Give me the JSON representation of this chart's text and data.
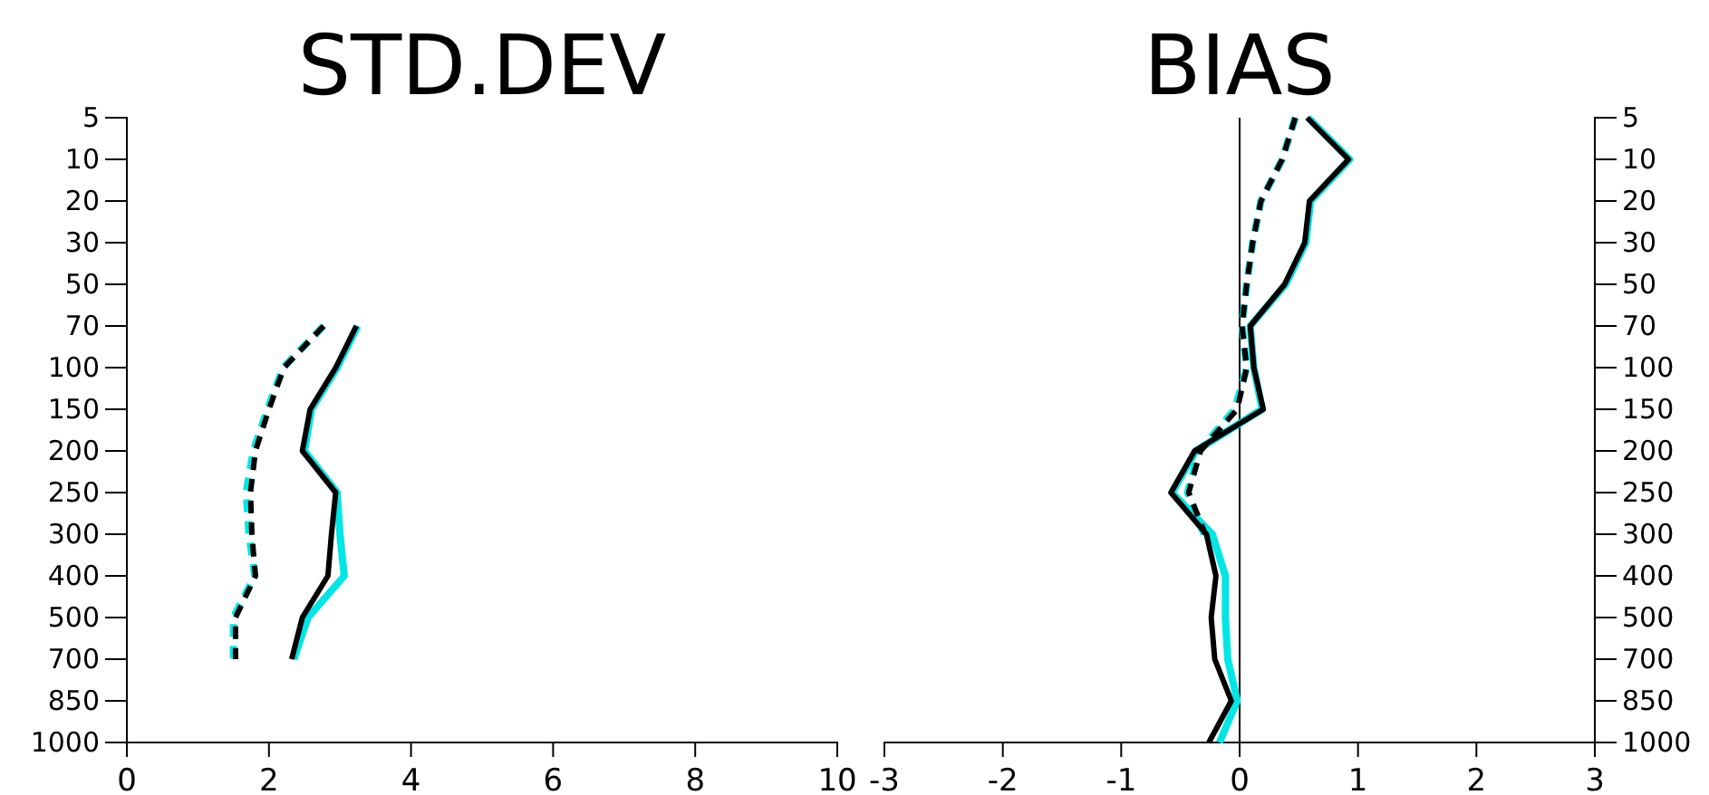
{
  "chart_data": [
    {
      "type": "line",
      "title": "STD.DEV",
      "orientation": "horizontal",
      "categories": [
        "5",
        "10",
        "20",
        "30",
        "50",
        "70",
        "100",
        "150",
        "200",
        "250",
        "300",
        "400",
        "500",
        "700",
        "850",
        "1000"
      ],
      "xlim": [
        0,
        10
      ],
      "xticks": [
        0,
        2,
        4,
        6,
        8,
        10
      ],
      "grid": false,
      "series": [
        {
          "color": "#00e5e5",
          "line_style": "solid",
          "values": [
            null,
            null,
            null,
            null,
            null,
            3.25,
            2.96,
            2.6,
            2.5,
            2.96,
            3.0,
            3.06,
            2.55,
            2.35,
            null,
            null
          ]
        },
        {
          "color": "#00e5e5",
          "line_style": "dashed",
          "values": [
            null,
            null,
            null,
            null,
            null,
            2.77,
            2.2,
            1.98,
            1.78,
            1.68,
            1.72,
            1.8,
            1.5,
            1.5,
            null,
            null
          ]
        },
        {
          "color": "#000000",
          "line_style": "solid",
          "values": [
            null,
            null,
            null,
            null,
            null,
            3.23,
            2.94,
            2.58,
            2.47,
            2.94,
            2.88,
            2.83,
            2.47,
            2.32,
            null,
            null
          ]
        },
        {
          "color": "#000000",
          "line_style": "dashed",
          "values": [
            null,
            null,
            null,
            null,
            null,
            2.77,
            2.21,
            2.0,
            1.81,
            1.74,
            1.76,
            1.81,
            1.53,
            1.53,
            null,
            null
          ]
        }
      ]
    },
    {
      "type": "line",
      "title": "BIAS",
      "orientation": "horizontal",
      "categories": [
        "5",
        "10",
        "20",
        "30",
        "50",
        "70",
        "100",
        "150",
        "200",
        "250",
        "300",
        "400",
        "500",
        "700",
        "850",
        "1000"
      ],
      "xlim": [
        -3,
        3
      ],
      "xticks": [
        -3,
        -2,
        -1,
        0,
        1,
        2,
        3
      ],
      "grid": false,
      "ref_lines": [
        {
          "axis": "x",
          "value": 0,
          "color": "#000000"
        }
      ],
      "series": [
        {
          "color": "#00e5e5",
          "line_style": "solid",
          "values": [
            0.58,
            0.93,
            0.6,
            0.56,
            0.39,
            0.09,
            0.12,
            0.19,
            -0.37,
            -0.57,
            -0.23,
            -0.12,
            -0.12,
            -0.1,
            -0.02,
            -0.17
          ]
        },
        {
          "color": "#00e5e5",
          "line_style": "dashed",
          "values": [
            0.47,
            0.36,
            0.18,
            0.11,
            0.06,
            0.02,
            0.06,
            -0.04,
            -0.34,
            -0.44,
            -0.3,
            null,
            null,
            null,
            null,
            null
          ]
        },
        {
          "color": "#000000",
          "line_style": "solid",
          "values": [
            0.57,
            0.92,
            0.59,
            0.55,
            0.38,
            0.09,
            0.12,
            0.2,
            -0.38,
            -0.58,
            -0.28,
            -0.2,
            -0.24,
            -0.21,
            -0.07,
            -0.26
          ]
        },
        {
          "color": "#000000",
          "line_style": "dashed",
          "values": [
            0.47,
            0.36,
            0.18,
            0.11,
            0.06,
            0.02,
            0.06,
            -0.02,
            -0.33,
            -0.43,
            -0.29,
            null,
            null,
            null,
            null,
            null
          ]
        }
      ]
    }
  ]
}
